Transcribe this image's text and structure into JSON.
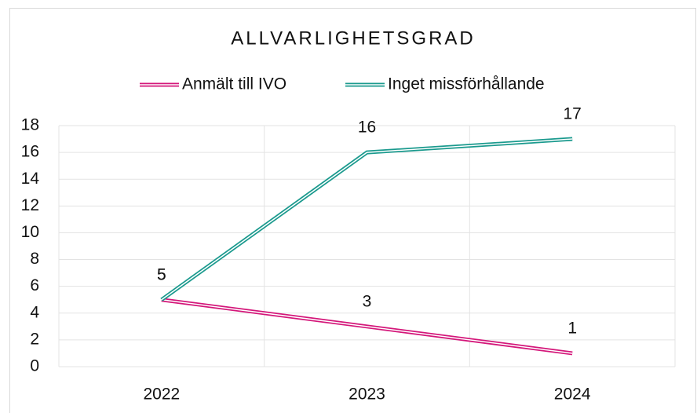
{
  "chart_data": {
    "type": "line",
    "title": "ALLVARLIGHETSGRAD",
    "categories": [
      "2022",
      "2023",
      "2024"
    ],
    "series": [
      {
        "name": "Anmält till IVO",
        "color": "#d4177a",
        "values": [
          5,
          3,
          1
        ]
      },
      {
        "name": "Inget missförhållande",
        "color": "#1b9a8e",
        "values": [
          5,
          16,
          17
        ]
      }
    ],
    "ylim": [
      0,
      18
    ],
    "yticks": [
      0,
      2,
      4,
      6,
      8,
      10,
      12,
      14,
      16,
      18
    ],
    "grid": true,
    "legend": "top"
  }
}
